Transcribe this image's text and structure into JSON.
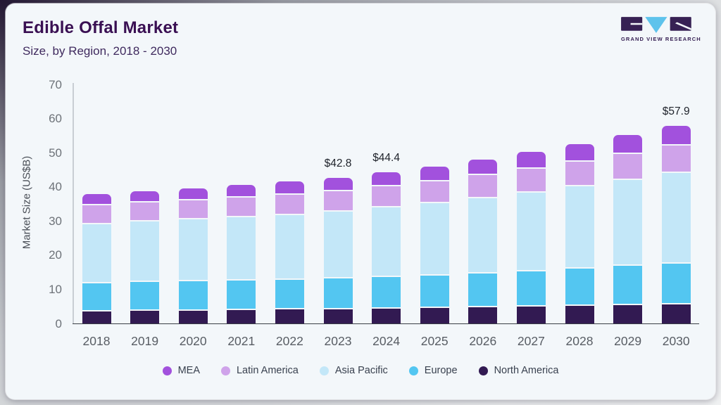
{
  "header": {
    "title": "Edible Offal Market",
    "subtitle": "Size, by Region, 2018 - 2030",
    "logo_text": "GRAND VIEW RESEARCH"
  },
  "colors": {
    "card_bg": "#f3f7fa",
    "title": "#3a1053",
    "subtitle": "#3f2a5e",
    "label_text": "#20242c",
    "legend_text": "#39414f",
    "logo_purple": "#372154",
    "logo_blue": "#5ec3ec",
    "xaxis_line": "#3a3f46",
    "yaxis_line": "#c9ced4"
  },
  "chart_data": {
    "type": "bar",
    "stacked": true,
    "title": "Edible Offal Market Size, by Region, 2018 - 2030",
    "xlabel": "",
    "ylabel": "Market Size (US$B)",
    "ylim": [
      0,
      70
    ],
    "yticks": [
      0,
      10,
      20,
      30,
      40,
      50,
      60,
      70
    ],
    "grid": false,
    "legend_position": "bottom",
    "categories": [
      "2018",
      "2019",
      "2020",
      "2021",
      "2022",
      "2023",
      "2024",
      "2025",
      "2026",
      "2027",
      "2028",
      "2029",
      "2030"
    ],
    "series": [
      {
        "name": "North America",
        "color": "#321a52",
        "values": [
          3.7,
          3.8,
          3.9,
          4.0,
          4.2,
          4.3,
          4.5,
          4.6,
          4.8,
          5.0,
          5.2,
          5.4,
          5.7
        ]
      },
      {
        "name": "Europe",
        "color": "#53c6f1",
        "values": [
          8.2,
          8.4,
          8.5,
          8.6,
          8.7,
          8.9,
          9.2,
          9.6,
          10.0,
          10.4,
          10.9,
          11.5,
          12.0
        ]
      },
      {
        "name": "Asia Pacific",
        "color": "#c3e7f8",
        "values": [
          17.3,
          17.7,
          18.1,
          18.6,
          19.0,
          19.6,
          20.3,
          21.1,
          22.0,
          23.0,
          24.1,
          25.3,
          26.5
        ]
      },
      {
        "name": "Latin America",
        "color": "#cfa3ea",
        "values": [
          5.5,
          5.6,
          5.7,
          5.8,
          5.9,
          6.0,
          6.2,
          6.4,
          6.7,
          7.0,
          7.3,
          7.6,
          8.0
        ]
      },
      {
        "name": "MEA",
        "color": "#a251dd",
        "values": [
          3.2,
          3.4,
          3.5,
          3.6,
          3.8,
          4.0,
          4.2,
          4.4,
          4.6,
          4.9,
          5.1,
          5.4,
          5.7
        ]
      }
    ],
    "totals": [
      37.9,
      38.9,
      39.7,
      40.6,
      41.6,
      42.8,
      44.4,
      46.1,
      48.1,
      50.3,
      52.6,
      55.2,
      57.9
    ],
    "annotations": [
      {
        "category": "2023",
        "label": "$42.8"
      },
      {
        "category": "2024",
        "label": "$44.4"
      },
      {
        "category": "2030",
        "label": "$57.9"
      }
    ],
    "legend_order": [
      "MEA",
      "Latin America",
      "Asia Pacific",
      "Europe",
      "North America"
    ]
  }
}
